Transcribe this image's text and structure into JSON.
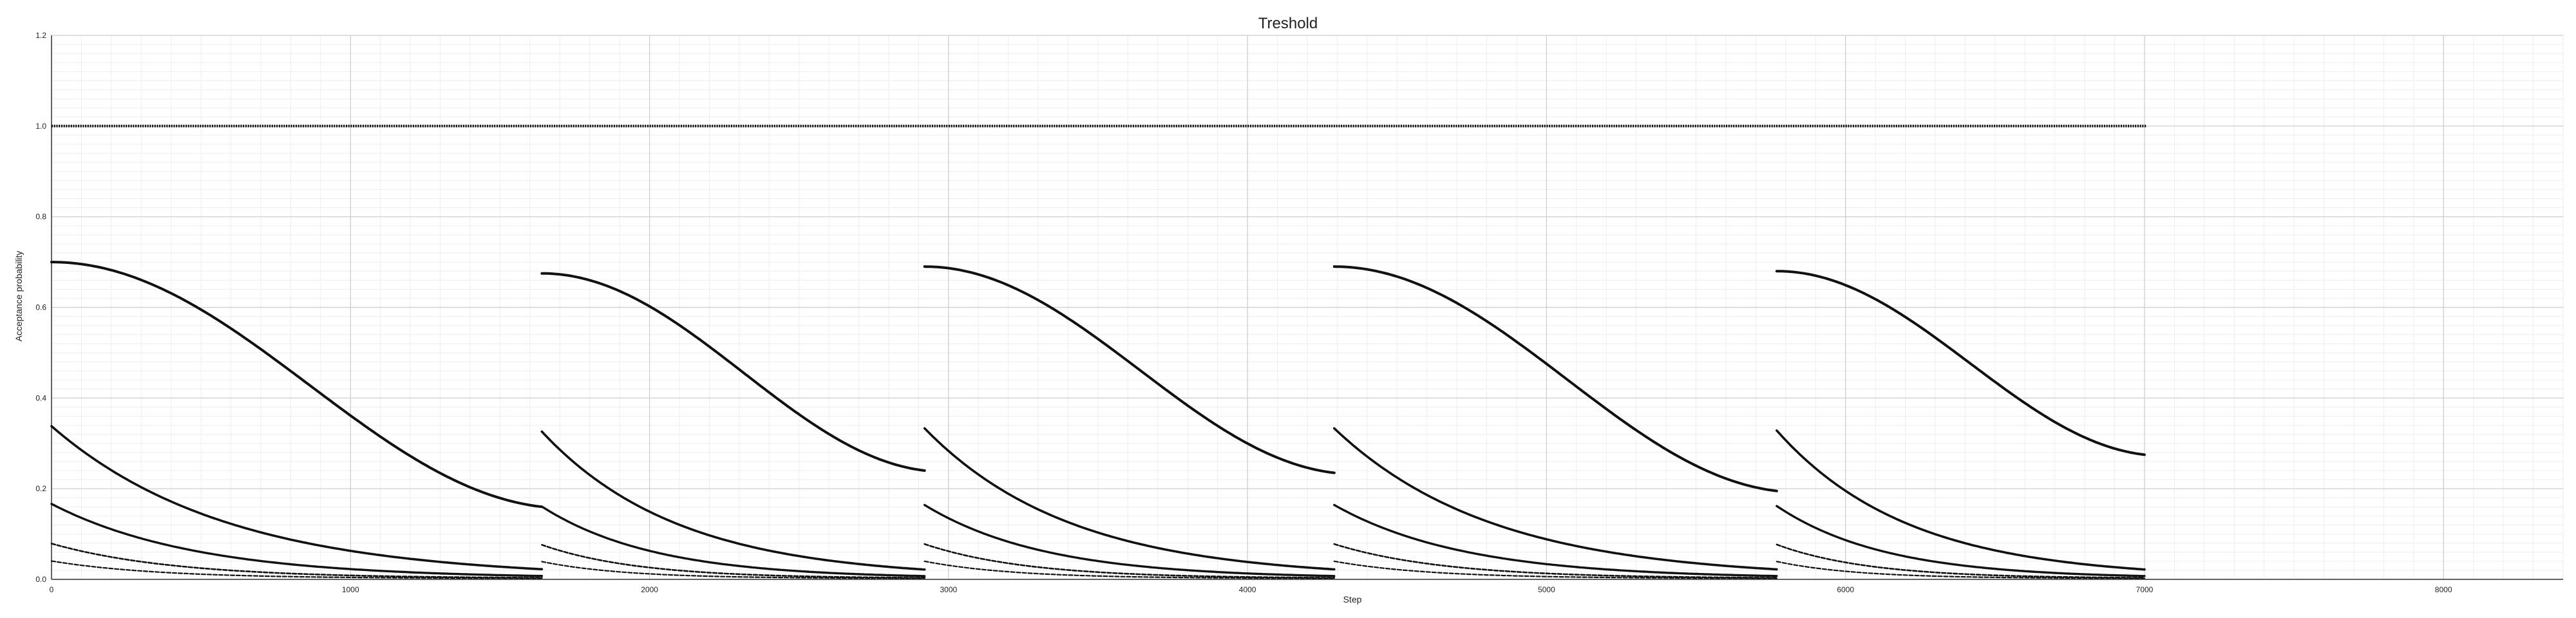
{
  "chart_data": {
    "type": "scatter",
    "title": "Treshold",
    "xlabel": "Step",
    "ylabel": "Acceptance probability",
    "xlim": [
      0,
      8400
    ],
    "ylim": [
      0,
      1.2
    ],
    "x_ticks": [
      0,
      1000,
      2000,
      3000,
      4000,
      5000,
      6000,
      7000,
      8000
    ],
    "y_ticks": [
      0.0,
      0.2,
      0.4,
      0.6,
      0.8,
      1.0,
      1.2
    ],
    "x_tick_labels": [
      "0",
      "1000",
      "2000",
      "3000",
      "4000",
      "5000",
      "6000",
      "7000",
      "8000"
    ],
    "y_tick_labels": [
      "0.0",
      "0.2",
      "0.4",
      "0.6",
      "0.8",
      "1.0",
      "1.2"
    ],
    "grid": true,
    "marker_color": "#111111",
    "constant_level": 1.0,
    "constant_x_range": [
      0,
      7000
    ],
    "segments": [
      {
        "x_start": 0,
        "x_end": 1640,
        "top_start": 0.7,
        "top_end": 0.16
      },
      {
        "x_start": 1640,
        "x_end": 2920,
        "top_start": 0.675,
        "top_end": 0.24
      },
      {
        "x_start": 2920,
        "x_end": 4290,
        "top_start": 0.69,
        "top_end": 0.235
      },
      {
        "x_start": 4290,
        "x_end": 5770,
        "top_start": 0.69,
        "top_end": 0.195
      },
      {
        "x_start": 5770,
        "x_end": 7000,
        "top_start": 0.68,
        "top_end": 0.275
      }
    ]
  }
}
